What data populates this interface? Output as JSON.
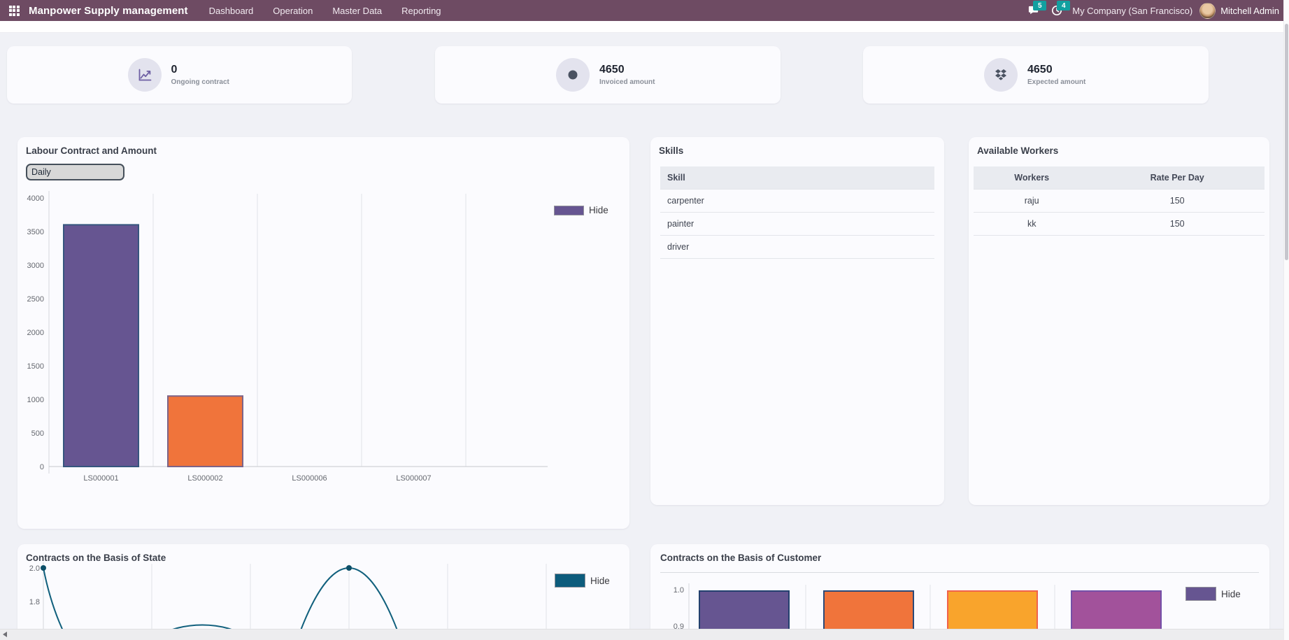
{
  "navbar": {
    "app_title": "Manpower Supply management",
    "menu": [
      {
        "label": "Dashboard"
      },
      {
        "label": "Operation"
      },
      {
        "label": "Master Data"
      },
      {
        "label": "Reporting"
      }
    ],
    "messages_count": "5",
    "activities_count": "4",
    "company": "My Company (San Francisco)",
    "user": "Mitchell Admin",
    "colors": {
      "navbar_bg": "#6e4b63",
      "badge": "#12a0a0"
    }
  },
  "kpis": [
    {
      "value": "0",
      "label": "Ongoing contract",
      "icon": "trend-chart-icon"
    },
    {
      "value": "4650",
      "label": "Invoiced amount",
      "icon": "dot-circle-icon"
    },
    {
      "value": "4650",
      "label": "Expected amount",
      "icon": "dropbox-icon"
    }
  ],
  "cards": {
    "labour": {
      "title": "Labour Contract and Amount",
      "period": "Daily",
      "legend": "Hide"
    },
    "skills": {
      "title": "Skills",
      "column": "Skill",
      "rows": [
        "carpenter",
        "painter",
        "driver"
      ]
    },
    "workers": {
      "title": "Available Workers",
      "columns": [
        "Workers",
        "Rate Per Day"
      ],
      "rows": [
        [
          "raju",
          "150"
        ],
        [
          "kk",
          "150"
        ]
      ]
    },
    "state": {
      "title": "Contracts on the Basis of State",
      "legend": "Hide"
    },
    "customer": {
      "title": "Contracts on the Basis of Customer",
      "legend": "Hide"
    }
  },
  "chart_data": [
    {
      "id": "labour-contract-and-amount",
      "type": "bar",
      "title": "Labour Contract and Amount",
      "categories": [
        "LS000001",
        "LS000002",
        "LS000006",
        "LS000007"
      ],
      "values": [
        3600,
        1050,
        0,
        0
      ],
      "ylim": [
        0,
        4000
      ],
      "ytick_step": 500,
      "bar_colors": [
        "#665591",
        "#f0743b",
        "#665591",
        "#665591"
      ],
      "bar_border_colors": [
        "#36567e",
        "#7d6488",
        "#36567e",
        "#36567e"
      ],
      "legend_label": "Hide",
      "legend_color": "#665591",
      "legend_position": "right",
      "grid": true
    },
    {
      "id": "contracts-on-the-basis-of-state",
      "type": "line",
      "title": "Contracts on the Basis of State",
      "visible_yticks": [
        2.0,
        1.8
      ],
      "approx_values": [
        2,
        1,
        1,
        2,
        1
      ],
      "clipped_at_viewport_bottom": true,
      "line_color": "#11607d",
      "point_color": "#0c4f68",
      "legend_label": "Hide",
      "legend_color": "#0d5c7c",
      "legend_position": "right",
      "grid": true
    },
    {
      "id": "contracts-on-the-basis-of-customer",
      "type": "bar",
      "title": "Contracts on the Basis of Customer",
      "values": [
        1,
        1,
        1,
        1
      ],
      "visible_yticks": [
        1.0,
        0.9
      ],
      "clipped_at_viewport_bottom": true,
      "bar_colors": [
        "#665591",
        "#f0743b",
        "#f9a42c",
        "#a2529b"
      ],
      "bar_border_colors": [
        "#23406e",
        "#2c4a78",
        "#f0624c",
        "#7450a8"
      ],
      "legend_label": "Hide",
      "legend_color": "#665591",
      "legend_position": "right",
      "grid": true
    }
  ]
}
